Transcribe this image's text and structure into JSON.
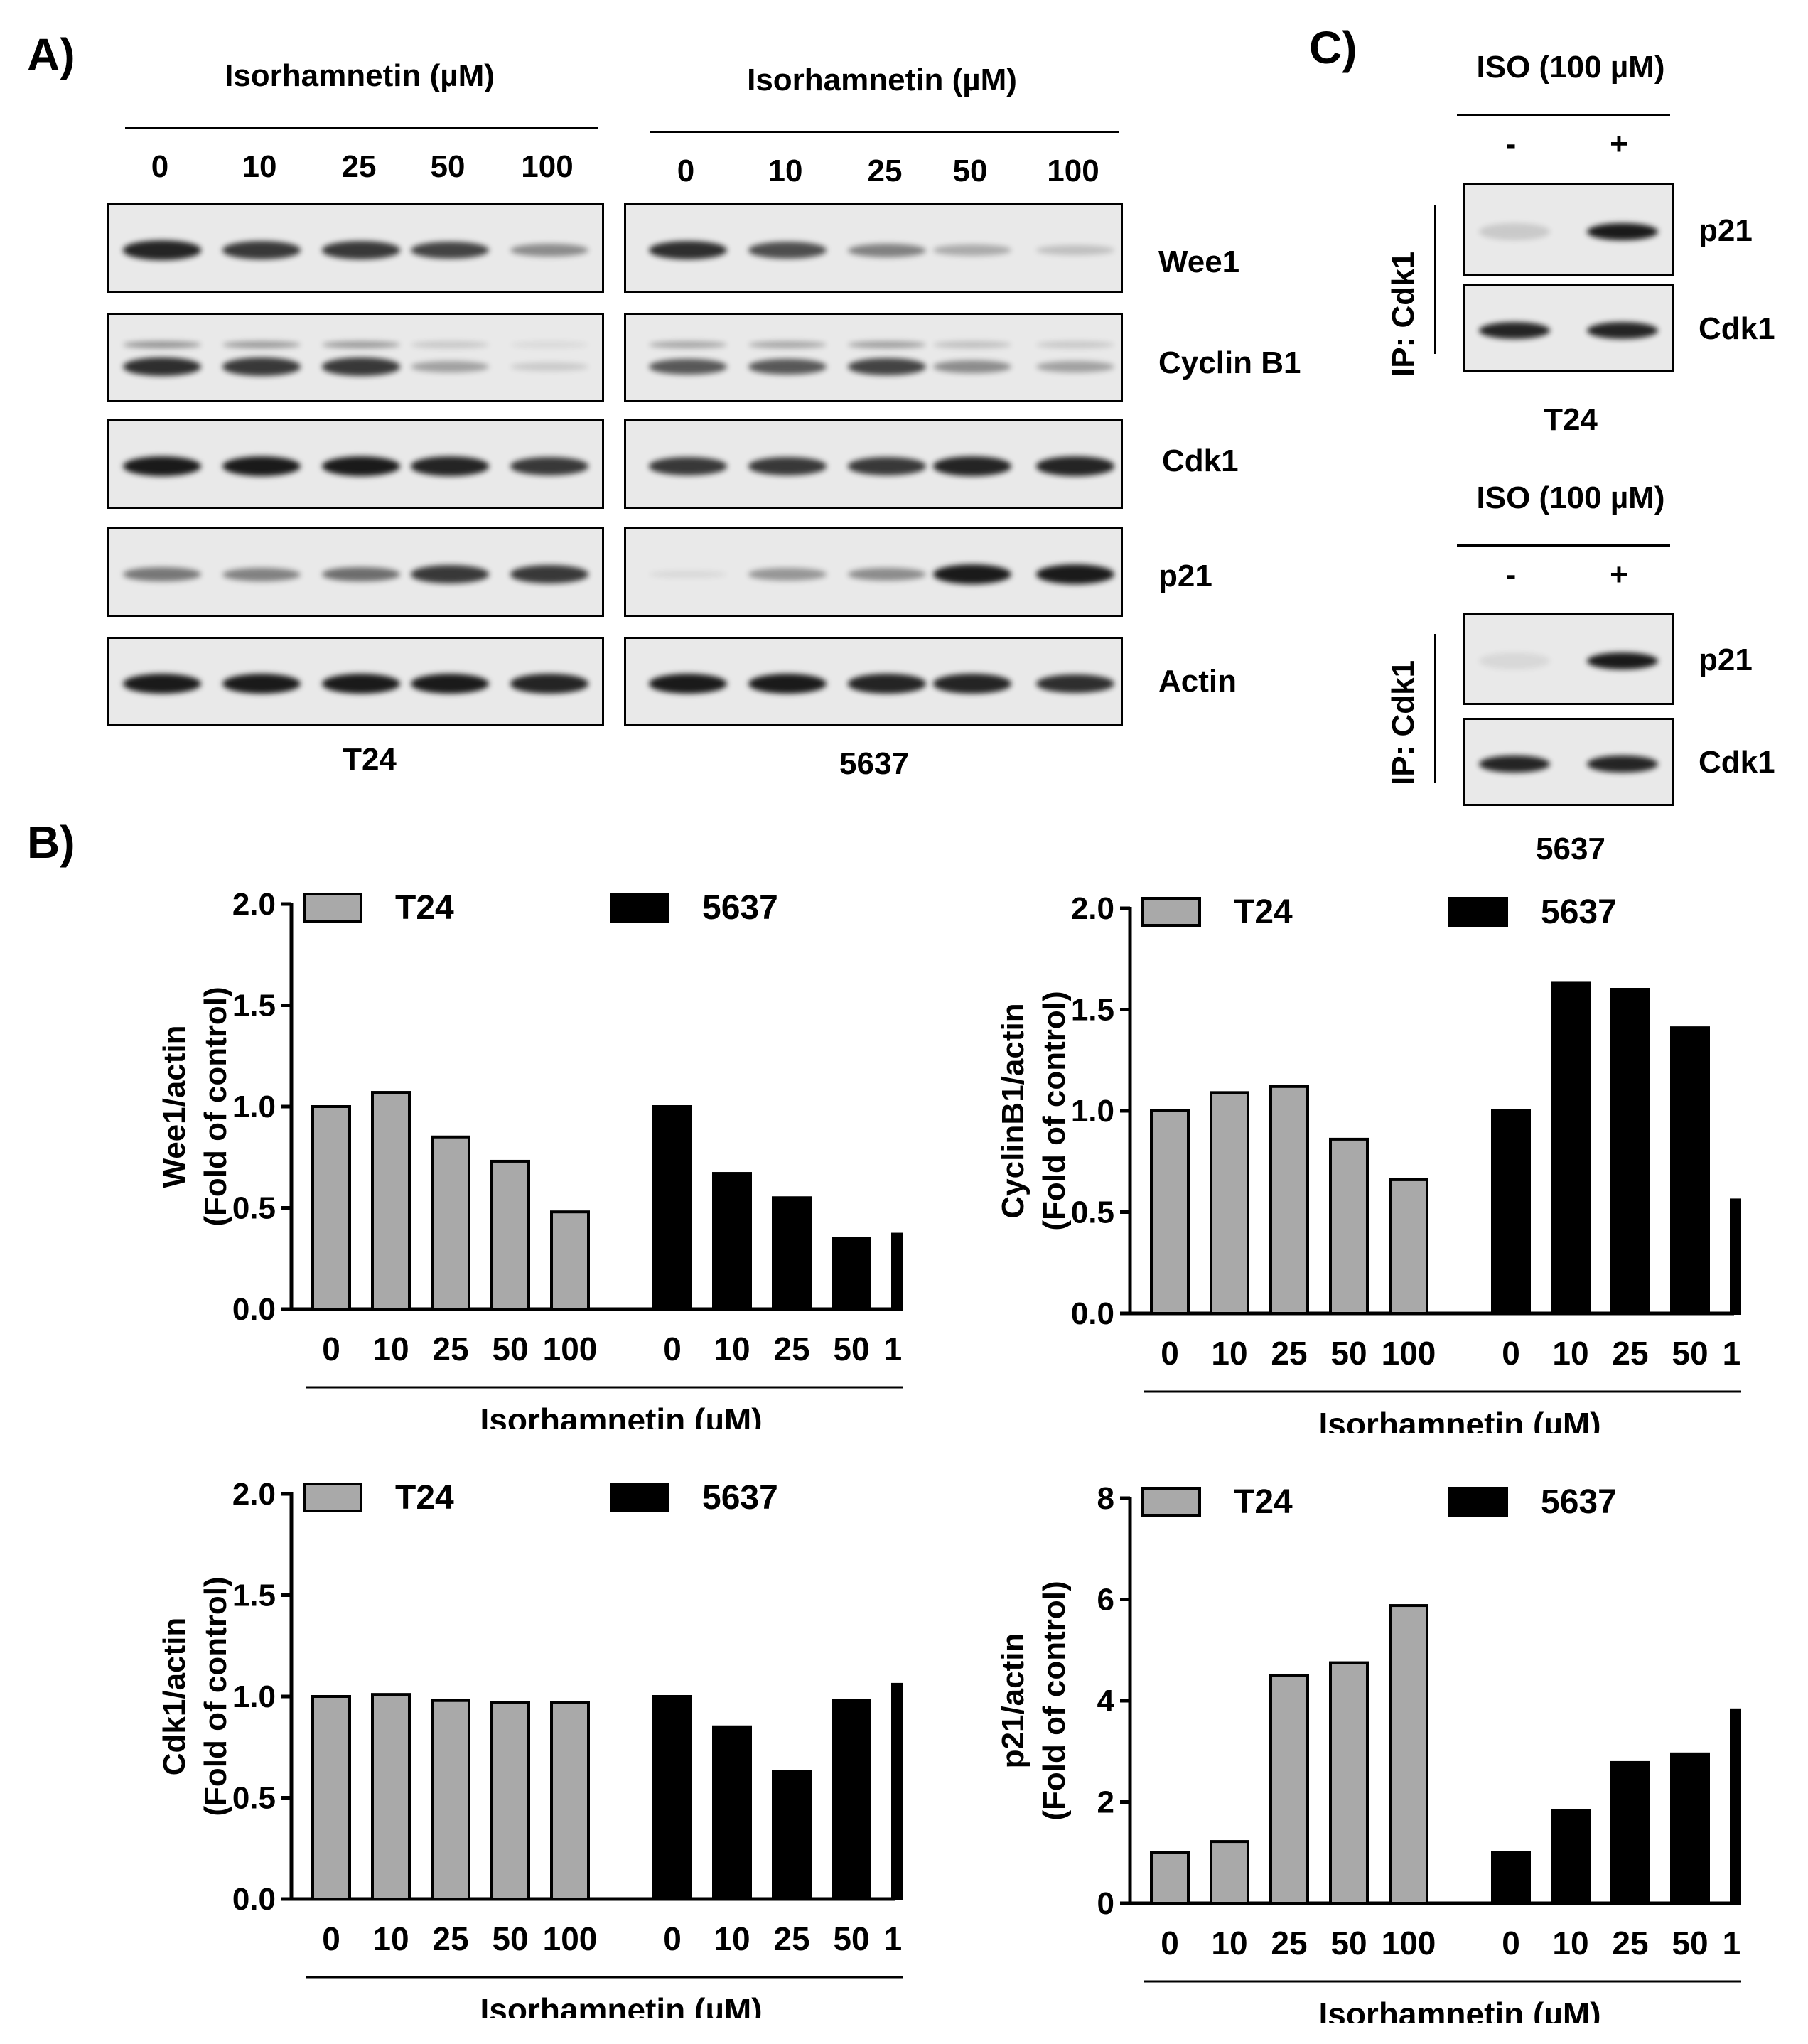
{
  "panelA": {
    "letter": "A)",
    "header_left": "Isorhamnetin (µM)",
    "header_right": "Isorhamnetin (µM)",
    "concentrations": [
      "0",
      "10",
      "25",
      "50",
      "100"
    ],
    "cell_left": "T24",
    "cell_right": "5637",
    "proteins": [
      "Wee1",
      "Cyclin B1",
      "Cdk1",
      "p21",
      "Actin"
    ],
    "band_intensity_t24": {
      "Wee1": [
        0.95,
        0.85,
        0.85,
        0.8,
        0.45
      ],
      "Cyclin B1": [
        0.9,
        0.85,
        0.85,
        0.35,
        0.15
      ],
      "Cdk1": [
        1.0,
        1.0,
        1.0,
        0.95,
        0.85
      ],
      "p21": [
        0.55,
        0.5,
        0.6,
        0.85,
        0.85
      ],
      "Actin": [
        1.0,
        1.0,
        1.0,
        1.0,
        0.95
      ]
    },
    "band_intensity_5637": {
      "Wee1": [
        0.9,
        0.75,
        0.5,
        0.3,
        0.2
      ],
      "Cyclin B1": [
        0.7,
        0.7,
        0.8,
        0.45,
        0.35
      ],
      "Cdk1": [
        0.85,
        0.85,
        0.85,
        0.95,
        0.95
      ],
      "p21": [
        0.05,
        0.4,
        0.45,
        1.0,
        1.0
      ],
      "Actin": [
        1.0,
        1.0,
        0.95,
        0.95,
        0.9
      ]
    }
  },
  "panelC": {
    "letter": "C)",
    "header": "ISO (100 µM)",
    "signs": [
      "-",
      "+"
    ],
    "ip_label": "IP: Cdk1",
    "blot_labels": [
      "p21",
      "Cdk1"
    ],
    "cells": [
      "T24",
      "5637"
    ]
  },
  "panelB": {
    "letter": "B)"
  },
  "colors": {
    "t24": "#a9a9a9",
    "c5637": "#000000"
  },
  "chart_data": [
    {
      "type": "bar",
      "ylabel_line1": "Wee1/actin",
      "ylabel_line2": "(Fold of control)",
      "xlabel": "Isorhamnetin (µM)",
      "categories": [
        "0",
        "10",
        "25",
        "50",
        "100"
      ],
      "ylim": [
        0,
        2.0
      ],
      "yticks": [
        "0.0",
        "0.5",
        "1.0",
        "1.5",
        "2.0"
      ],
      "ytick_values": [
        0,
        0.5,
        1.0,
        1.5,
        2.0
      ],
      "series": [
        {
          "name": "T24",
          "values": [
            1.0,
            1.07,
            0.85,
            0.73,
            0.48
          ]
        },
        {
          "name": "5637",
          "values": [
            1.0,
            0.67,
            0.55,
            0.35,
            0.37
          ]
        }
      ]
    },
    {
      "type": "bar",
      "ylabel_line1": "CyclinB1/actin",
      "ylabel_line2": "(Fold of control)",
      "xlabel": "Isorhamnetin (µM)",
      "categories": [
        "0",
        "10",
        "25",
        "50",
        "100"
      ],
      "ylim": [
        0,
        2.0
      ],
      "yticks": [
        "0.0",
        "0.5",
        "1.0",
        "1.5",
        "2.0"
      ],
      "ytick_values": [
        0,
        0.5,
        1.0,
        1.5,
        2.0
      ],
      "series": [
        {
          "name": "T24",
          "values": [
            1.0,
            1.09,
            1.12,
            0.86,
            0.66
          ]
        },
        {
          "name": "5637",
          "values": [
            1.0,
            1.63,
            1.6,
            1.41,
            0.56
          ]
        }
      ]
    },
    {
      "type": "bar",
      "ylabel_line1": "Cdk1/actin",
      "ylabel_line2": "(Fold of control)",
      "xlabel": "Isorhamnetin (µM)",
      "categories": [
        "0",
        "10",
        "25",
        "50",
        "100"
      ],
      "ylim": [
        0,
        2.0
      ],
      "yticks": [
        "0.0",
        "0.5",
        "1.0",
        "1.5",
        "2.0"
      ],
      "ytick_values": [
        0,
        0.5,
        1.0,
        1.5,
        2.0
      ],
      "series": [
        {
          "name": "T24",
          "values": [
            1.0,
            1.01,
            0.98,
            0.97,
            0.97
          ]
        },
        {
          "name": "5637",
          "values": [
            1.0,
            0.85,
            0.63,
            0.98,
            1.06
          ]
        }
      ]
    },
    {
      "type": "bar",
      "ylabel_line1": "p21/actin",
      "ylabel_line2": "(Fold of control)",
      "xlabel": "Isorhamnetin (µM)",
      "categories": [
        "0",
        "10",
        "25",
        "50",
        "100"
      ],
      "ylim": [
        0,
        8
      ],
      "yticks": [
        "0",
        "2",
        "4",
        "6",
        "8"
      ],
      "ytick_values": [
        0,
        2,
        4,
        6,
        8
      ],
      "series": [
        {
          "name": "T24",
          "values": [
            1.0,
            1.22,
            4.5,
            4.75,
            5.88
          ]
        },
        {
          "name": "5637",
          "values": [
            1.0,
            1.83,
            2.78,
            2.95,
            3.82
          ]
        }
      ]
    }
  ]
}
